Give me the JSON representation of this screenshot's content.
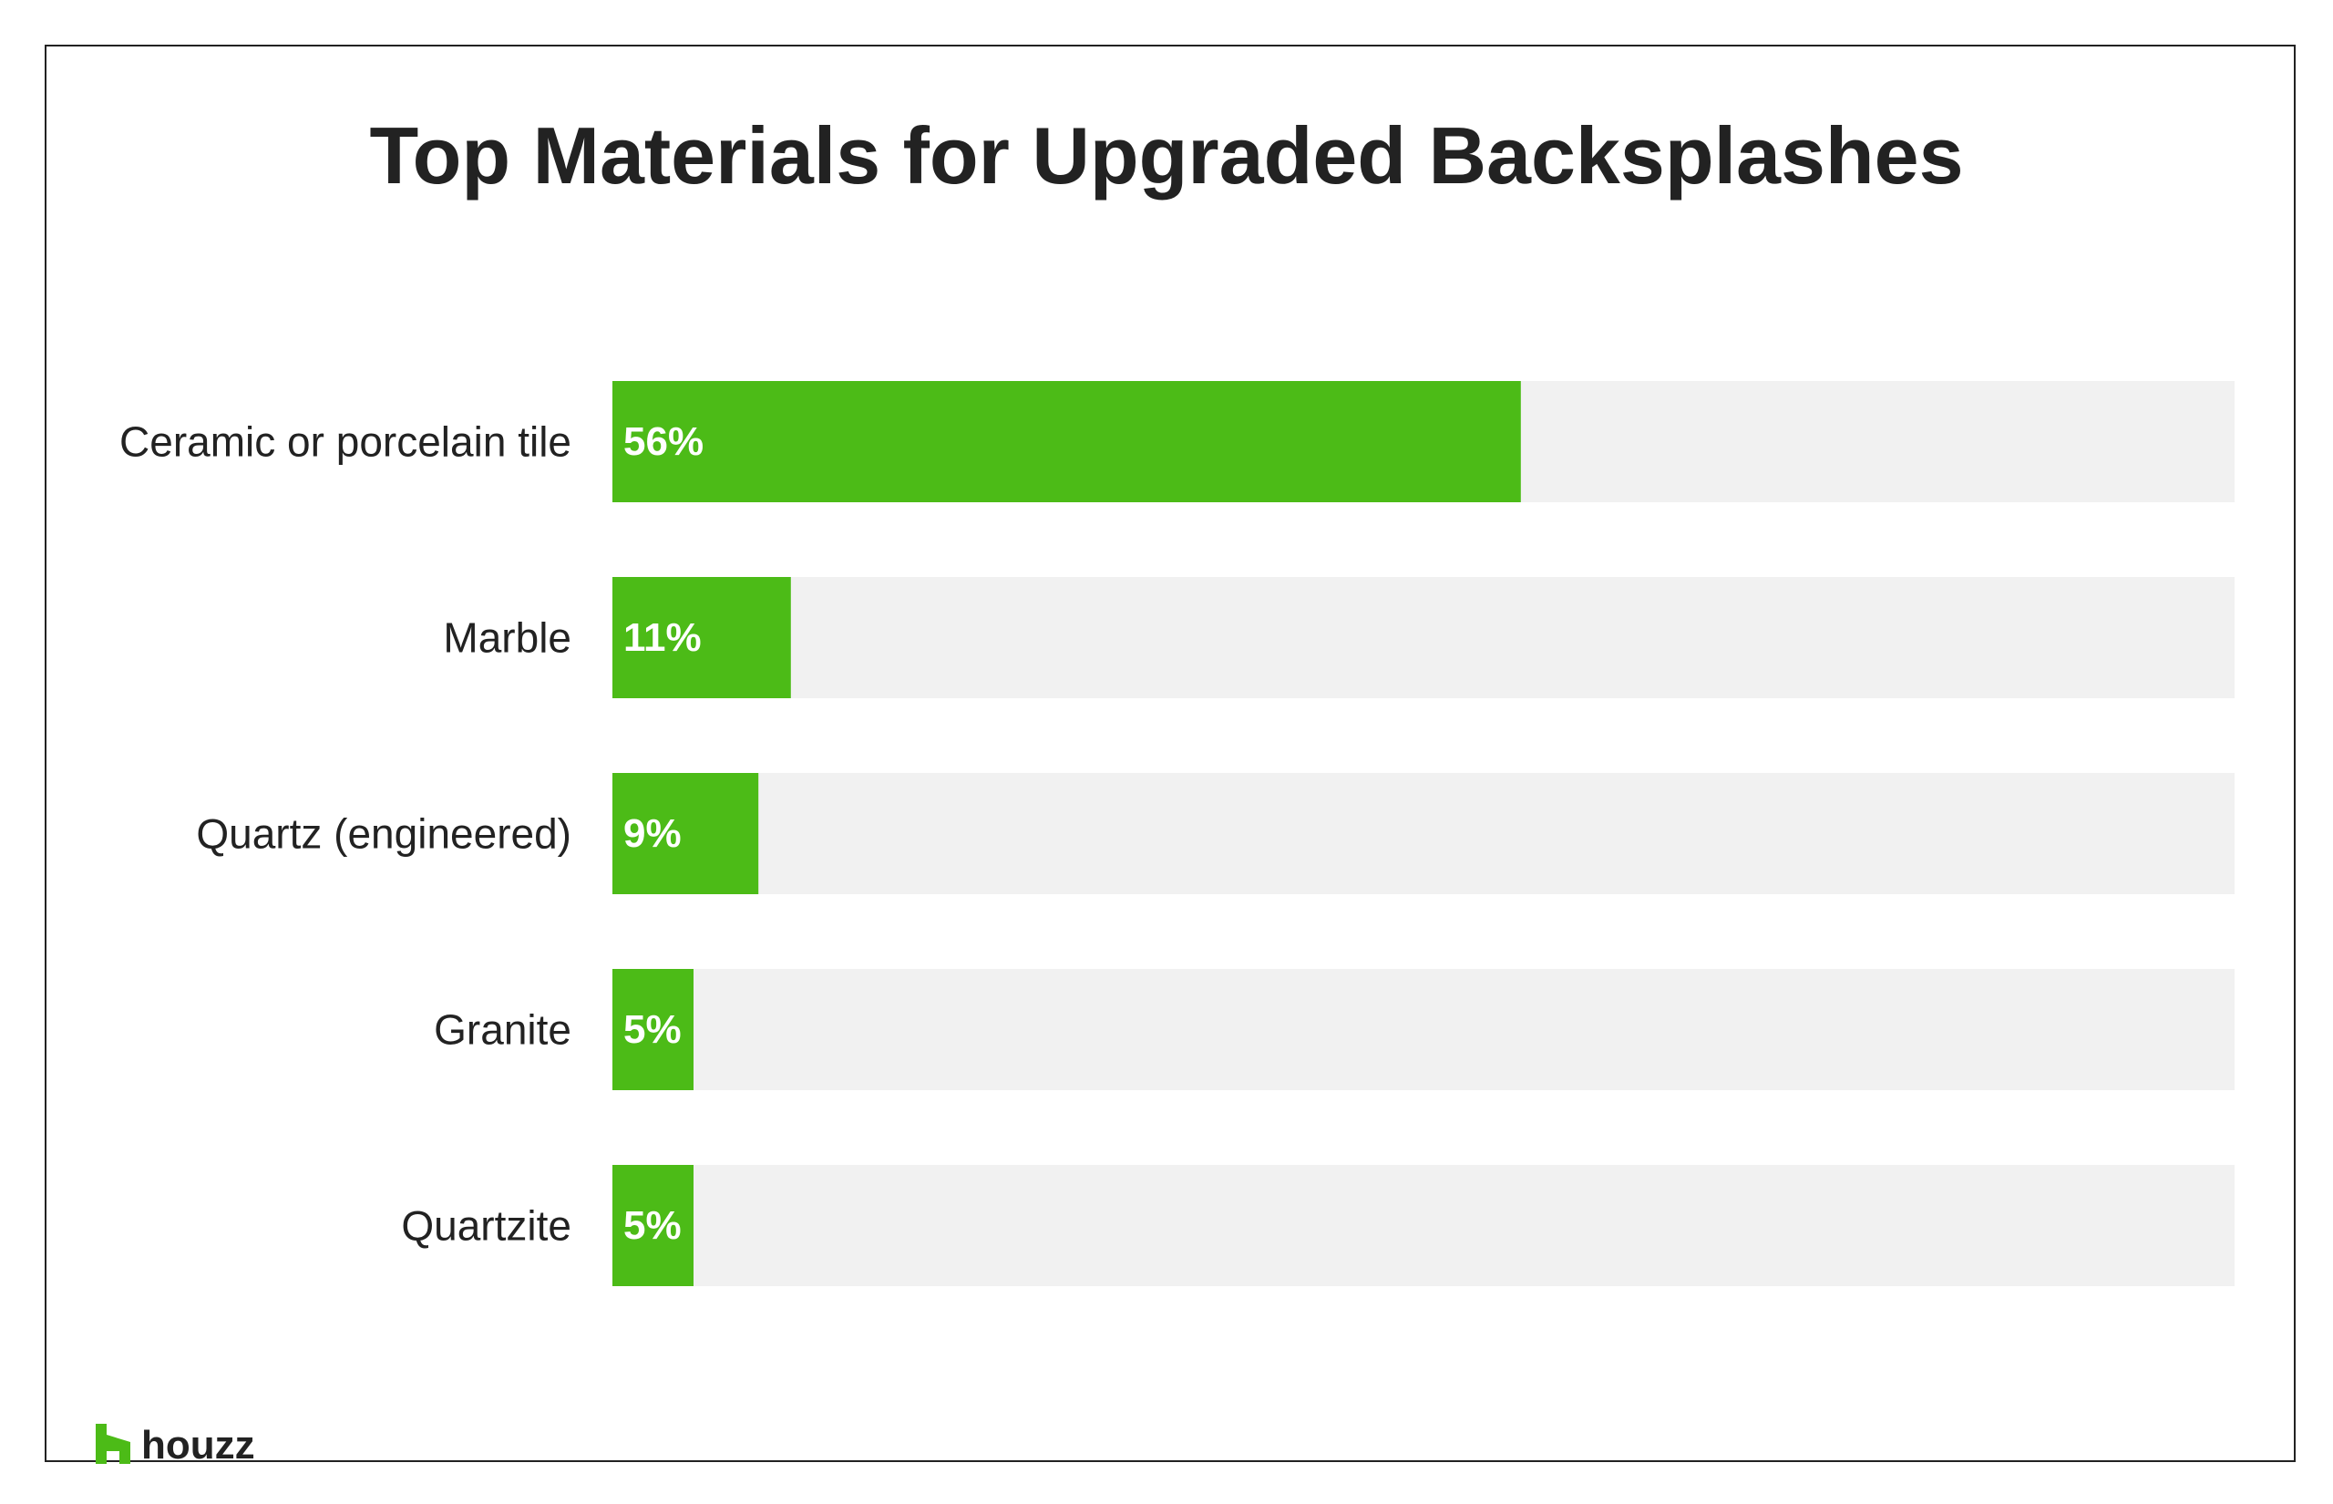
{
  "chart_data": {
    "type": "bar",
    "orientation": "horizontal",
    "title": "Top Materials for Upgraded Backsplashes",
    "xlabel": "",
    "ylabel": "",
    "xlim": [
      0,
      100
    ],
    "unit": "%",
    "categories": [
      "Ceramic or porcelain tile",
      "Marble",
      "Quartz (engineered)",
      "Granite",
      "Quartzite"
    ],
    "values": [
      56,
      11,
      9,
      5,
      5
    ],
    "value_labels": [
      "56%",
      "11%",
      "9%",
      "5%",
      "5%"
    ],
    "grid": false,
    "legend": "none"
  },
  "colors": {
    "bar": "#4cbb17",
    "track": "#f1f1f1",
    "text": "#222222",
    "value_text": "#ffffff",
    "frame": "#222222"
  },
  "brand": {
    "logo_text": "houzz",
    "logo_icon": "houzz-logo-icon"
  }
}
